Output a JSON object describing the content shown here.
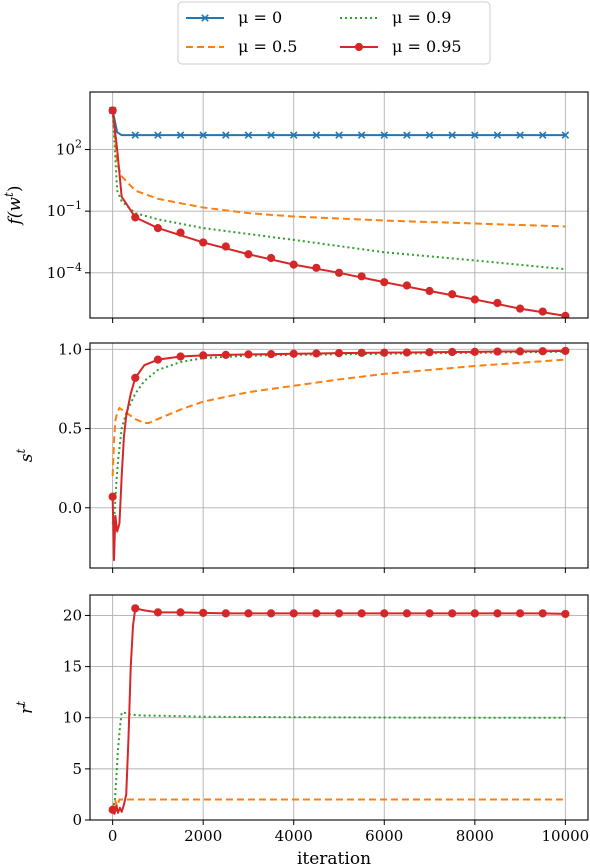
{
  "colors": {
    "mu_0": "#1f77b4",
    "mu_0_5": "#ff7f0e",
    "mu_0_9": "#2ca02c",
    "mu_0_95": "#d62728",
    "grid": "#b0b0b0"
  },
  "legend": {
    "entries": [
      "μ = 0",
      "μ = 0.5",
      "μ = 0.9",
      "μ = 0.95"
    ],
    "placement": "top-center, outside axes, 2 columns"
  },
  "chart_data": [
    {
      "type": "line",
      "title": "",
      "xlabel": "",
      "ylabel": "f(w^t)",
      "ylabel_parts": {
        "base": "f(w",
        "sup": "t",
        "close": ")"
      },
      "yscale": "log",
      "xlim": [
        -500,
        10500
      ],
      "ylim_log10": [
        -6.2,
        4.8
      ],
      "x_ticks": [
        0,
        2000,
        4000,
        6000,
        8000,
        10000
      ],
      "x_tick_labels": [
        "",
        "",
        "",
        "",
        "",
        ""
      ],
      "y_ticks_log10": [
        2,
        -1,
        -4
      ],
      "y_tick_labels": [
        {
          "base": "10",
          "exp": "2"
        },
        {
          "base": "10",
          "exp": "−1"
        },
        {
          "base": "10",
          "exp": "−4"
        }
      ],
      "grid": true,
      "series": [
        {
          "name": "μ = 0",
          "style": "solid",
          "marker": "x",
          "x": [
            0,
            100,
            200,
            500,
            1000,
            2000,
            4000,
            6000,
            8000,
            10000
          ],
          "y": [
            8000,
            700,
            500,
            500,
            500,
            500,
            500,
            500,
            500,
            500
          ]
        },
        {
          "name": "μ = 0.5",
          "style": "dashed",
          "marker": "none",
          "x": [
            0,
            100,
            200,
            500,
            1000,
            2000,
            3000,
            4000,
            6000,
            8000,
            10000
          ],
          "y": [
            8000,
            20,
            5,
            1,
            0.4,
            0.15,
            0.08,
            0.055,
            0.035,
            0.025,
            0.018
          ]
        },
        {
          "name": "μ = 0.9",
          "style": "dotted",
          "marker": "none",
          "x": [
            0,
            100,
            200,
            500,
            1000,
            2000,
            4000,
            6000,
            8000,
            10000
          ],
          "y": [
            8000,
            1,
            0.3,
            0.08,
            0.04,
            0.015,
            0.004,
            0.001,
            0.0004,
            0.00015
          ]
        },
        {
          "name": "μ = 0.95",
          "style": "solid",
          "marker": "o",
          "x": [
            0,
            100,
            200,
            500,
            1000,
            2000,
            3000,
            4000,
            5000,
            6000,
            7000,
            8000,
            9000,
            10000
          ],
          "y": [
            8000,
            100,
            0.5,
            0.05,
            0.015,
            0.003,
            0.0008,
            0.00025,
            0.0001,
            3.5e-05,
            1.3e-05,
            5e-06,
            1.8e-06,
            8e-07
          ]
        }
      ]
    },
    {
      "type": "line",
      "title": "",
      "xlabel": "",
      "ylabel": "s^t",
      "ylabel_parts": {
        "base": "s",
        "sup": "t"
      },
      "xlim": [
        -500,
        10500
      ],
      "ylim": [
        -0.38,
        1.04
      ],
      "x_ticks": [
        0,
        2000,
        4000,
        6000,
        8000,
        10000
      ],
      "x_tick_labels": [
        "",
        "",
        "",
        "",
        "",
        ""
      ],
      "y_ticks": [
        0.0,
        0.5,
        1.0
      ],
      "y_tick_labels": [
        "0.0",
        "0.5",
        "1.0"
      ],
      "grid": true,
      "series": [
        {
          "name": "μ = 0.5",
          "style": "dashed",
          "marker": "none",
          "x": [
            0,
            30,
            60,
            100,
            150,
            200,
            300,
            500,
            700,
            800,
            1000,
            1500,
            2000,
            3000,
            4000,
            5000,
            6000,
            7000,
            8000,
            9000,
            10000
          ],
          "y": [
            0.2,
            0.42,
            0.55,
            0.6,
            0.63,
            0.62,
            0.6,
            0.56,
            0.535,
            0.535,
            0.56,
            0.62,
            0.67,
            0.73,
            0.77,
            0.81,
            0.845,
            0.87,
            0.895,
            0.915,
            0.935
          ]
        },
        {
          "name": "μ = 0.9",
          "style": "dotted",
          "marker": "none",
          "x": [
            0,
            40,
            80,
            120,
            160,
            200,
            300,
            500,
            700,
            1000,
            1500,
            2000,
            3000,
            4000,
            6000,
            8000,
            10000
          ],
          "y": [
            -0.1,
            -0.05,
            0.15,
            0.3,
            0.4,
            0.5,
            0.6,
            0.72,
            0.8,
            0.87,
            0.92,
            0.945,
            0.96,
            0.965,
            0.972,
            0.978,
            0.985
          ]
        },
        {
          "name": "μ = 0.95",
          "style": "solid",
          "marker": "o",
          "x": [
            0,
            30,
            60,
            100,
            150,
            200,
            250,
            300,
            400,
            500,
            700,
            1000,
            1500,
            2000,
            2500,
            3000,
            3500,
            4000,
            4500,
            5000,
            5500,
            6000,
            6500,
            7000,
            7500,
            8000,
            8500,
            9000,
            9500,
            10000
          ],
          "y": [
            0.07,
            -0.33,
            -0.05,
            -0.15,
            -0.1,
            0.2,
            0.45,
            0.58,
            0.72,
            0.82,
            0.9,
            0.935,
            0.955,
            0.962,
            0.965,
            0.968,
            0.97,
            0.972,
            0.974,
            0.976,
            0.978,
            0.979,
            0.98,
            0.982,
            0.983,
            0.984,
            0.986,
            0.987,
            0.988,
            0.99
          ]
        }
      ]
    },
    {
      "type": "line",
      "title": "",
      "xlabel": "iteration",
      "ylabel": "r^t",
      "ylabel_parts": {
        "base": "r",
        "sup": "t"
      },
      "xlim": [
        -500,
        10500
      ],
      "ylim": [
        0,
        22
      ],
      "x_ticks": [
        0,
        2000,
        4000,
        6000,
        8000,
        10000
      ],
      "x_tick_labels": [
        "0",
        "2000",
        "4000",
        "6000",
        "8000",
        "10000"
      ],
      "y_ticks": [
        0,
        5,
        10,
        15,
        20
      ],
      "y_tick_labels": [
        "0",
        "5",
        "10",
        "15",
        "20"
      ],
      "grid": true,
      "series": [
        {
          "name": "μ = 0.5",
          "style": "dashed",
          "marker": "none",
          "x": [
            0,
            50,
            100,
            150,
            200,
            300,
            500,
            10000
          ],
          "y": [
            1,
            2,
            1.3,
            2,
            2,
            2,
            2,
            2
          ]
        },
        {
          "name": "μ = 0.9",
          "style": "dotted",
          "marker": "none",
          "x": [
            0,
            50,
            80,
            120,
            160,
            200,
            250,
            400,
            700,
            1000,
            2000,
            4000,
            6000,
            8000,
            10000
          ],
          "y": [
            1,
            2,
            4,
            7,
            9,
            10.5,
            10.5,
            10.3,
            10.2,
            10.2,
            10.1,
            10.05,
            10.02,
            10.0,
            10.0
          ]
        },
        {
          "name": "μ = 0.95",
          "style": "solid",
          "marker": "o",
          "x": [
            0,
            40,
            80,
            120,
            160,
            200,
            250,
            300,
            350,
            400,
            450,
            500,
            700,
            1000,
            1500,
            2000,
            2500,
            3000,
            3500,
            4000,
            4500,
            5000,
            5500,
            6000,
            6500,
            7000,
            7500,
            8000,
            8500,
            9000,
            9500,
            10000
          ],
          "y": [
            1,
            0.6,
            1.4,
            0.7,
            1.2,
            0.8,
            1.5,
            2.5,
            8,
            15,
            19,
            20.7,
            20.5,
            20.3,
            20.3,
            20.25,
            20.2,
            20.2,
            20.2,
            20.2,
            20.2,
            20.2,
            20.2,
            20.2,
            20.2,
            20.2,
            20.2,
            20.2,
            20.2,
            20.2,
            20.2,
            20.15
          ]
        }
      ]
    }
  ]
}
